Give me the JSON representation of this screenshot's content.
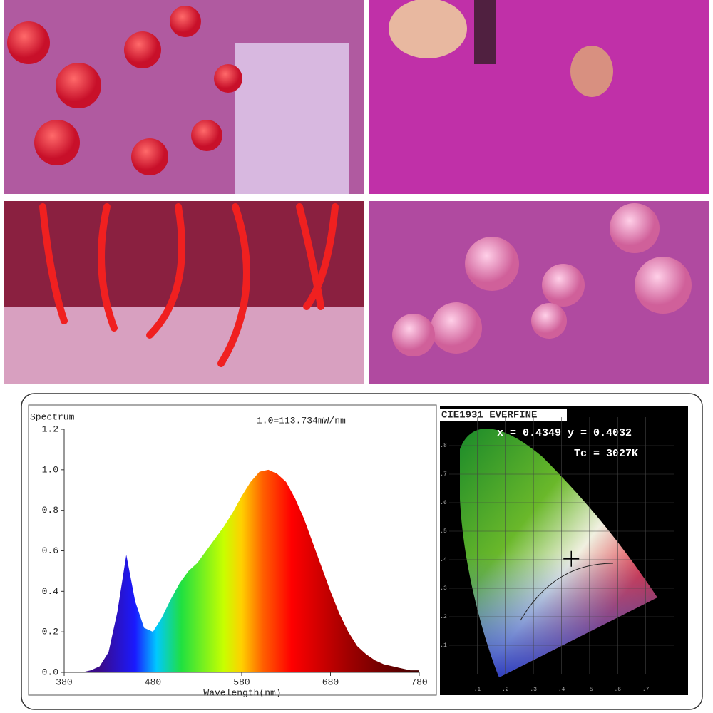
{
  "chart_data": [
    {
      "type": "area",
      "title": "Spectrum",
      "subtitle": "1.0=113.734mW/nm",
      "x_label": "Wavelength(nm)",
      "x": [
        380,
        390,
        400,
        410,
        420,
        430,
        440,
        450,
        460,
        470,
        480,
        490,
        500,
        510,
        520,
        530,
        540,
        550,
        560,
        570,
        580,
        590,
        600,
        610,
        620,
        630,
        640,
        650,
        660,
        670,
        680,
        690,
        700,
        710,
        720,
        730,
        740,
        750,
        760,
        770,
        780
      ],
      "values": [
        0,
        0,
        0,
        0.01,
        0.03,
        0.1,
        0.3,
        0.58,
        0.35,
        0.22,
        0.2,
        0.27,
        0.36,
        0.44,
        0.5,
        0.54,
        0.6,
        0.66,
        0.72,
        0.79,
        0.87,
        0.94,
        0.99,
        1.0,
        0.98,
        0.94,
        0.86,
        0.76,
        0.64,
        0.52,
        0.4,
        0.29,
        0.2,
        0.13,
        0.09,
        0.06,
        0.04,
        0.03,
        0.02,
        0.01,
        0.01
      ],
      "xlim": [
        380,
        780
      ],
      "xticks": [
        380,
        480,
        580,
        680,
        780
      ],
      "ylim": [
        0,
        1.2
      ],
      "yticks": [
        {
          "value": 0,
          "label": "0.0"
        },
        0.2,
        0.4,
        0.6,
        0.8,
        {
          "value": 1,
          "label": "1.0"
        },
        1.2
      ]
    },
    {
      "type": "scatter",
      "title": "CIE1931 EVERFINE",
      "annotations": [
        "x = 0.4349 y = 0.4032",
        "Tc = 3027K"
      ],
      "x": [
        0.4349
      ],
      "values": [
        0.4032
      ],
      "color": "#000000",
      "xlim": [
        0,
        0.8
      ],
      "ylim": [
        0,
        0.9
      ],
      "xticks": [
        {
          "value": 0.1,
          "label": ".1"
        },
        {
          "value": 0.2,
          "label": ".2"
        },
        {
          "value": 0.3,
          "label": ".3"
        },
        {
          "value": 0.4,
          "label": ".4"
        },
        {
          "value": 0.5,
          "label": ".5"
        },
        {
          "value": 0.6,
          "label": ".6"
        },
        {
          "value": 0.7,
          "label": ".7"
        }
      ],
      "yticks": [
        {
          "value": 0.1,
          "label": ".1"
        },
        {
          "value": 0.2,
          "label": ".2"
        },
        {
          "value": 0.3,
          "label": ".3"
        },
        {
          "value": 0.4,
          "label": ".4"
        },
        {
          "value": 0.5,
          "label": ".5"
        },
        {
          "value": 0.6,
          "label": ".6"
        },
        {
          "value": 0.7,
          "label": ".7"
        },
        {
          "value": 0.8,
          "label": ".8"
        }
      ]
    }
  ]
}
